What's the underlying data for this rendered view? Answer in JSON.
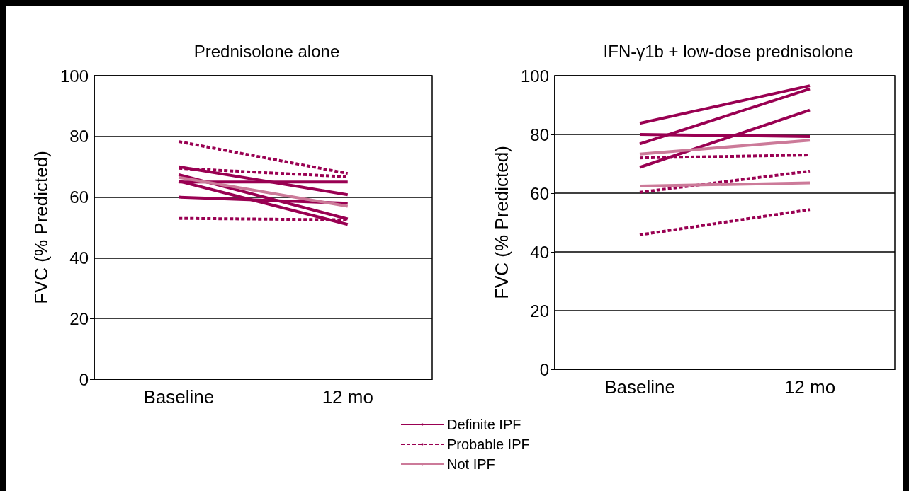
{
  "chart_data": [
    {
      "type": "line",
      "title": "Prednisolone alone",
      "ylabel": "FVC (% Predicted)",
      "categories": [
        "Baseline",
        "12 mo"
      ],
      "ylim": [
        0,
        100
      ],
      "yticks": [
        0,
        20,
        40,
        60,
        80,
        100
      ],
      "grid": "y",
      "legend": "bottom right",
      "marker": "none",
      "series": [
        {
          "name": "Definite IPF",
          "color": "#990052",
          "line_style": "solid",
          "values": [
            70,
            60.8
          ]
        },
        {
          "color": "#990052",
          "line_style": "solid",
          "values": [
            65,
            65
          ]
        },
        {
          "color": "#990052",
          "line_style": "solid",
          "values": [
            67.4,
            52.8
          ]
        },
        {
          "color": "#990052",
          "line_style": "solid",
          "values": [
            65.3,
            51
          ]
        },
        {
          "color": "#990052",
          "line_style": "solid",
          "values": [
            60,
            58
          ]
        },
        {
          "name": "Probable IPF",
          "color": "#990052",
          "line_style": "dotted",
          "values": [
            78.3,
            67.8
          ]
        },
        {
          "color": "#990052",
          "line_style": "dotted",
          "values": [
            69.5,
            66.7
          ]
        },
        {
          "color": "#990052",
          "line_style": "dotted",
          "values": [
            53,
            52.5
          ]
        },
        {
          "name": "Not IPF",
          "color": "#cc7a99",
          "line_style": "solid",
          "values": [
            66.5,
            57
          ]
        }
      ]
    },
    {
      "type": "line",
      "title": "IFN-γ1b + low-dose prednisolone",
      "ylabel": "FVC (% Predicted)",
      "categories": [
        "Baseline",
        "12 mo"
      ],
      "ylim": [
        0,
        100
      ],
      "yticks": [
        0,
        20,
        40,
        60,
        80,
        100
      ],
      "grid": "y",
      "marker": "none",
      "series": [
        {
          "color": "#990052",
          "line_style": "solid",
          "values": [
            83.8,
            96.6
          ]
        },
        {
          "color": "#990052",
          "line_style": "solid",
          "values": [
            76.8,
            95.5
          ]
        },
        {
          "color": "#990052",
          "line_style": "solid",
          "values": [
            80,
            79.3
          ]
        },
        {
          "color": "#990052",
          "line_style": "solid",
          "values": [
            68.8,
            88.3
          ]
        },
        {
          "color": "#990052",
          "line_style": "dotted",
          "values": [
            72,
            73
          ]
        },
        {
          "color": "#990052",
          "line_style": "dotted",
          "values": [
            60.3,
            67.5
          ]
        },
        {
          "color": "#990052",
          "line_style": "dotted",
          "values": [
            45.8,
            54.4
          ]
        },
        {
          "color": "#cc7a99",
          "line_style": "solid",
          "values": [
            73.3,
            78
          ]
        },
        {
          "color": "#cc7a99",
          "line_style": "solid",
          "values": [
            62.4,
            63.5
          ]
        }
      ]
    }
  ]
}
